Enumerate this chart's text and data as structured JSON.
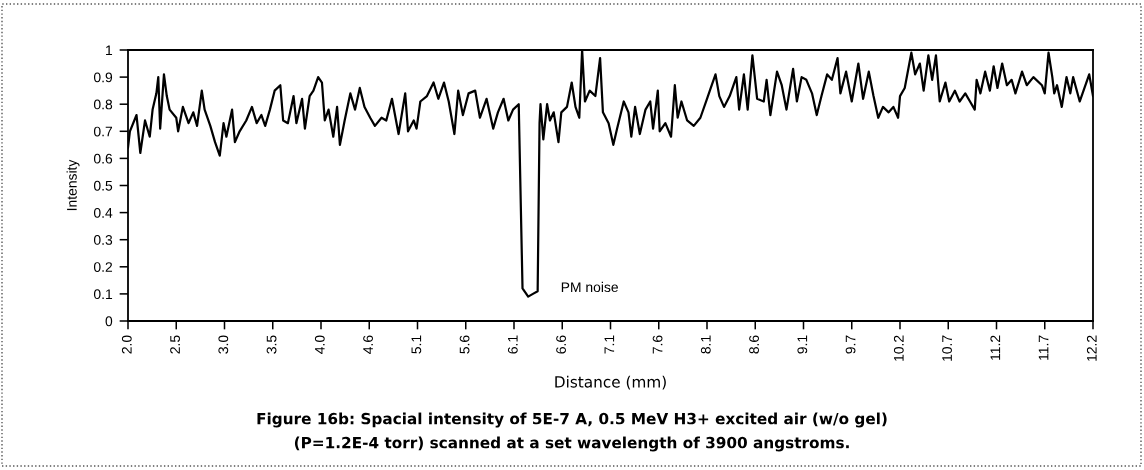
{
  "chart_data": {
    "type": "line",
    "xlabel": "Distance (mm)",
    "ylabel": "Intensity",
    "x": [
      2.0,
      2.02,
      2.09,
      2.13,
      2.18,
      2.23,
      2.26,
      2.3,
      2.32,
      2.34,
      2.38,
      2.41,
      2.44,
      2.51,
      2.53,
      2.58,
      2.64,
      2.69,
      2.73,
      2.78,
      2.81,
      2.87,
      2.92,
      2.97,
      3.01,
      3.04,
      3.1,
      3.13,
      3.18,
      3.25,
      3.31,
      3.36,
      3.41,
      3.45,
      3.5,
      3.55,
      3.61,
      3.64,
      3.69,
      3.75,
      3.78,
      3.84,
      3.87,
      3.92,
      3.96,
      4.01,
      4.05,
      4.08,
      4.12,
      4.17,
      4.21,
      4.24,
      4.29,
      4.35,
      4.4,
      4.45,
      4.5,
      4.56,
      4.61,
      4.68,
      4.73,
      4.79,
      4.86,
      4.93,
      4.96,
      5.02,
      5.05,
      5.09,
      5.16,
      5.23,
      5.28,
      5.34,
      5.39,
      5.45,
      5.49,
      5.54,
      5.6,
      5.67,
      5.72,
      5.79,
      5.86,
      5.91,
      5.97,
      6.02,
      6.07,
      6.13,
      6.17,
      6.23,
      6.28,
      6.33,
      6.35,
      6.36,
      6.39,
      6.43,
      6.46,
      6.5,
      6.55,
      6.58,
      6.64,
      6.69,
      6.73,
      6.77,
      6.8,
      6.83,
      6.88,
      6.94,
      6.99,
      7.02,
      7.08,
      7.13,
      7.17,
      7.24,
      7.29,
      7.32,
      7.36,
      7.41,
      7.47,
      7.52,
      7.55,
      7.6,
      7.62,
      7.68,
      7.74,
      7.78,
      7.81,
      7.85,
      7.91,
      7.98,
      8.05,
      8.12,
      8.15,
      8.21,
      8.25,
      8.3,
      8.36,
      8.43,
      8.46,
      8.51,
      8.55,
      8.6,
      8.65,
      8.72,
      8.75,
      8.79,
      8.86,
      8.91,
      8.96,
      9.03,
      9.07,
      9.12,
      9.17,
      9.23,
      9.28,
      9.33,
      9.39,
      9.44,
      9.5,
      9.53,
      9.59,
      9.65,
      9.72,
      9.77,
      9.83,
      9.88,
      9.93,
      9.98,
      10.04,
      10.09,
      10.14,
      10.16,
      10.21,
      10.28,
      10.32,
      10.37,
      10.41,
      10.46,
      10.5,
      10.54,
      10.58,
      10.64,
      10.68,
      10.74,
      10.79,
      10.85,
      10.9,
      10.95,
      10.97,
      11.01,
      11.06,
      11.11,
      11.15,
      11.19,
      11.24,
      11.29,
      11.34,
      11.38,
      11.45,
      11.5,
      11.57,
      11.66,
      11.69,
      11.73,
      11.77,
      11.79,
      11.82,
      11.87,
      11.92,
      11.96,
      11.99,
      12.06,
      12.11,
      12.16,
      12.2
    ],
    "series": [
      {
        "color": "#000000",
        "values": [
          0.64,
          0.7,
          0.76,
          0.62,
          0.74,
          0.68,
          0.78,
          0.84,
          0.9,
          0.71,
          0.91,
          0.83,
          0.78,
          0.75,
          0.7,
          0.79,
          0.73,
          0.77,
          0.72,
          0.85,
          0.78,
          0.72,
          0.66,
          0.61,
          0.73,
          0.68,
          0.78,
          0.66,
          0.7,
          0.74,
          0.79,
          0.73,
          0.76,
          0.72,
          0.78,
          0.85,
          0.87,
          0.74,
          0.73,
          0.83,
          0.73,
          0.82,
          0.71,
          0.83,
          0.85,
          0.9,
          0.88,
          0.74,
          0.78,
          0.68,
          0.79,
          0.65,
          0.74,
          0.84,
          0.78,
          0.86,
          0.79,
          0.75,
          0.72,
          0.75,
          0.74,
          0.82,
          0.69,
          0.84,
          0.7,
          0.74,
          0.71,
          0.81,
          0.83,
          0.88,
          0.82,
          0.88,
          0.81,
          0.69,
          0.85,
          0.76,
          0.84,
          0.85,
          0.75,
          0.82,
          0.71,
          0.77,
          0.82,
          0.74,
          0.78,
          0.8,
          0.12,
          0.09,
          0.1,
          0.11,
          0.73,
          0.8,
          0.67,
          0.8,
          0.74,
          0.77,
          0.66,
          0.77,
          0.79,
          0.88,
          0.79,
          0.75,
          1.0,
          0.81,
          0.85,
          0.83,
          0.97,
          0.77,
          0.73,
          0.65,
          0.71,
          0.81,
          0.77,
          0.68,
          0.79,
          0.69,
          0.78,
          0.81,
          0.71,
          0.85,
          0.7,
          0.73,
          0.68,
          0.87,
          0.75,
          0.81,
          0.74,
          0.72,
          0.75,
          0.82,
          0.85,
          0.91,
          0.83,
          0.79,
          0.83,
          0.9,
          0.78,
          0.91,
          0.78,
          0.98,
          0.82,
          0.81,
          0.89,
          0.76,
          0.92,
          0.87,
          0.78,
          0.93,
          0.81,
          0.9,
          0.89,
          0.84,
          0.76,
          0.83,
          0.91,
          0.89,
          0.97,
          0.84,
          0.92,
          0.81,
          0.95,
          0.82,
          0.92,
          0.83,
          0.75,
          0.79,
          0.77,
          0.79,
          0.75,
          0.83,
          0.86,
          0.99,
          0.91,
          0.95,
          0.85,
          0.98,
          0.89,
          0.98,
          0.81,
          0.88,
          0.81,
          0.85,
          0.81,
          0.84,
          0.81,
          0.78,
          0.89,
          0.84,
          0.92,
          0.85,
          0.94,
          0.86,
          0.95,
          0.87,
          0.89,
          0.84,
          0.92,
          0.87,
          0.9,
          0.87,
          0.84,
          0.99,
          0.9,
          0.84,
          0.87,
          0.79,
          0.9,
          0.84,
          0.9,
          0.81,
          0.86,
          0.91,
          0.83
        ]
      }
    ],
    "xlim": [
      2.0,
      12.2
    ],
    "xticks": [
      {
        "value": 2.0,
        "label": "2.0"
      },
      {
        "value": 2.51,
        "label": "2.5"
      },
      {
        "value": 3.02,
        "label": "3.0"
      },
      {
        "value": 3.53,
        "label": "3.5"
      },
      {
        "value": 4.04,
        "label": "4.0"
      },
      {
        "value": 4.55,
        "label": "4.6"
      },
      {
        "value": 5.06,
        "label": "5.1"
      },
      {
        "value": 5.57,
        "label": "5.6"
      },
      {
        "value": 6.08,
        "label": "6.1"
      },
      {
        "value": 6.59,
        "label": "6.6"
      },
      {
        "value": 7.1,
        "label": "7.1"
      },
      {
        "value": 7.61,
        "label": "7.6"
      },
      {
        "value": 8.12,
        "label": "8.1"
      },
      {
        "value": 8.63,
        "label": "8.6"
      },
      {
        "value": 9.14,
        "label": "9.1"
      },
      {
        "value": 9.65,
        "label": "9.7"
      },
      {
        "value": 10.16,
        "label": "10.2"
      },
      {
        "value": 10.67,
        "label": "10.7"
      },
      {
        "value": 11.18,
        "label": "11.2"
      },
      {
        "value": 11.69,
        "label": "11.7"
      },
      {
        "value": 12.2,
        "label": "12.2"
      }
    ],
    "ylim": [
      0,
      1
    ],
    "yticks": [
      0,
      0.1,
      0.2,
      0.3,
      0.4,
      0.5,
      0.6,
      0.7,
      0.8,
      0.9,
      1
    ],
    "grid": false,
    "line_style": "solid",
    "marker": "none",
    "annotations": [
      {
        "text": "PM noise",
        "x": 6.28,
        "y": 0.1
      },
      "Figure 16b: Spacial intensity of 5E-7 A, 0.5 MeV H3+ excited air (w/o gel)",
      "(P=1.2E-4 torr) scanned at a set wavelength of 3900 angstroms."
    ]
  }
}
